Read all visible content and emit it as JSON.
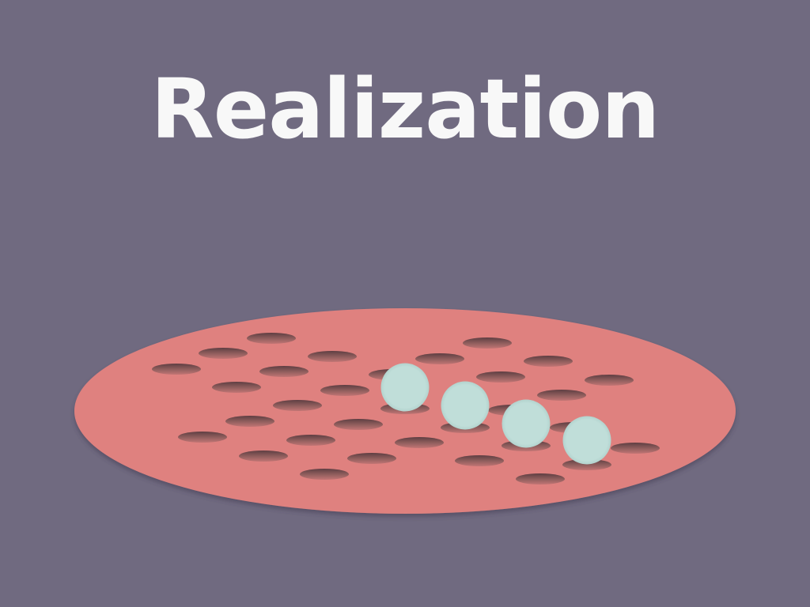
{
  "title": "Realization",
  "colors": {
    "background": "#706a80",
    "board": "#df817f",
    "hole": "#a26c6c",
    "ball": "#c0ded9",
    "title": "#f8f8f8"
  }
}
